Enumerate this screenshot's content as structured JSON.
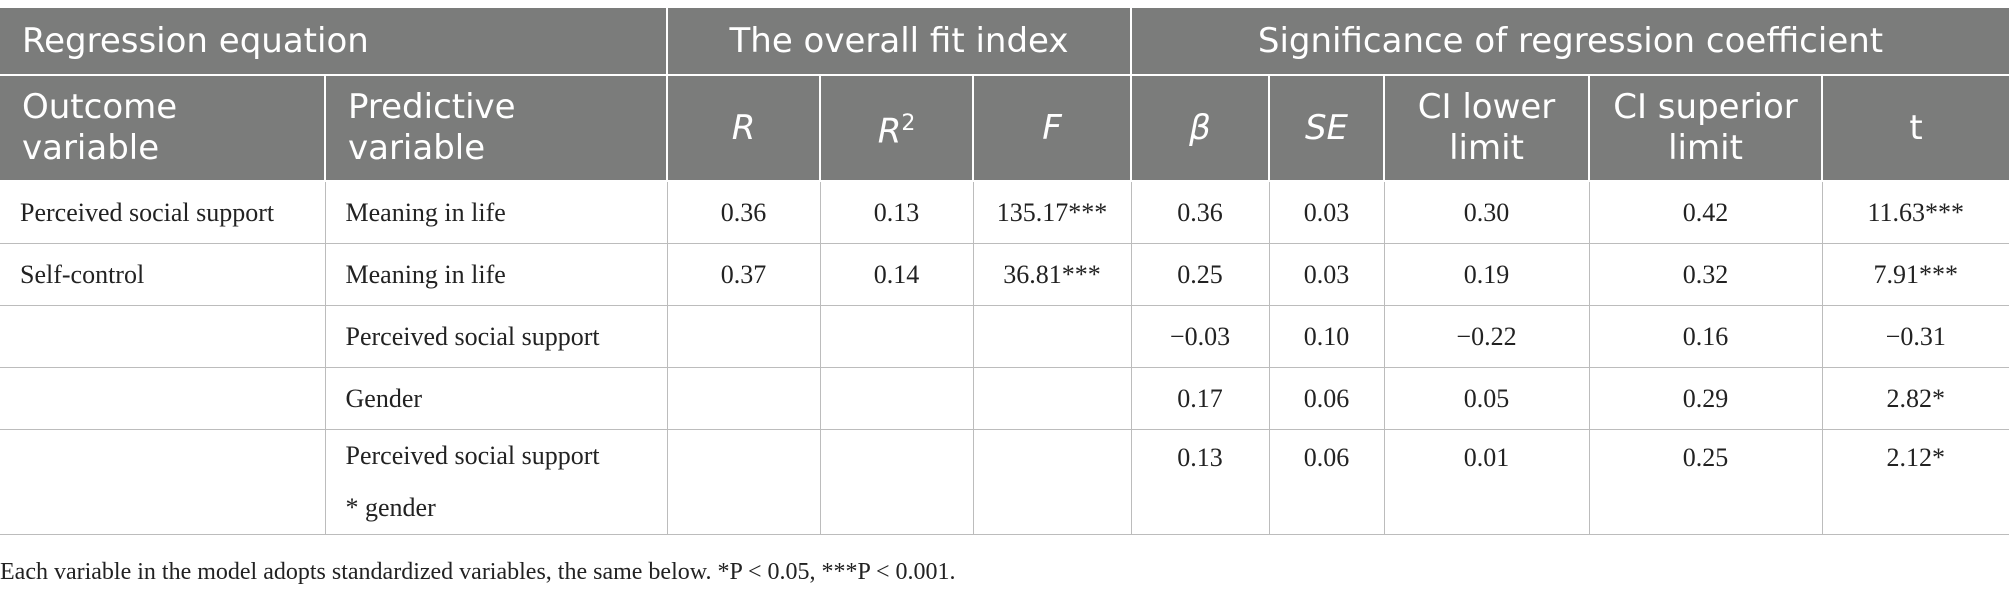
{
  "header_row1": {
    "regression_equation": "Regression equation",
    "overall_fit": "The overall fit index",
    "significance": "Significance of regression coefficient"
  },
  "header_row2": {
    "outcome_variable": "Outcome variable",
    "predictive_variable": "Predictive variable",
    "R": "R",
    "R2_base": "R",
    "R2_sup": "2",
    "F": "F",
    "beta": "β",
    "SE": "SE",
    "ci_lower": "CI lower limit",
    "ci_superior": "CI superior limit",
    "t": "t"
  },
  "rows": [
    {
      "outcome": "Perceived social support",
      "predictor": "Meaning in life",
      "R": "0.36",
      "R2": "0.13",
      "F": "135.17***",
      "beta": "0.36",
      "SE": "0.03",
      "ci_lower": "0.30",
      "ci_upper": "0.42",
      "t": "11.63***"
    },
    {
      "outcome": "Self-control",
      "predictor": "Meaning in life",
      "R": "0.37",
      "R2": "0.14",
      "F": "36.81***",
      "beta": "0.25",
      "SE": "0.03",
      "ci_lower": "0.19",
      "ci_upper": "0.32",
      "t": "7.91***"
    },
    {
      "outcome": "",
      "predictor": "Perceived social support",
      "R": "",
      "R2": "",
      "F": "",
      "beta": "−0.03",
      "SE": "0.10",
      "ci_lower": "−0.22",
      "ci_upper": "0.16",
      "t": "−0.31"
    },
    {
      "outcome": "",
      "predictor": "Gender",
      "R": "",
      "R2": "",
      "F": "",
      "beta": "0.17",
      "SE": "0.06",
      "ci_lower": "0.05",
      "ci_upper": "0.29",
      "t": "2.82*"
    },
    {
      "outcome": "",
      "predictor_line1": "Perceived social support",
      "predictor_line2": "* gender",
      "R": "",
      "R2": "",
      "F": "",
      "beta": "0.13",
      "SE": "0.06",
      "ci_lower": "0.01",
      "ci_upper": "0.25",
      "t": "2.12*"
    }
  ],
  "footnote": "Each variable in the model adopts standardized variables, the same below. *P < 0.05, ***P < 0.001."
}
